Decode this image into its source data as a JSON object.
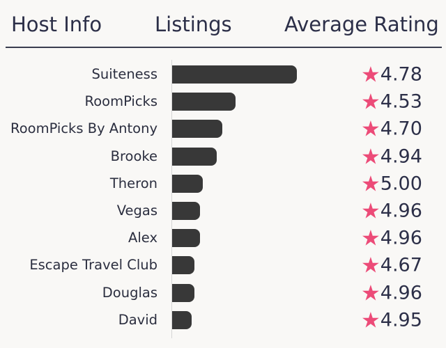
{
  "header": {
    "host_info": "Host Info",
    "listings": "Listings",
    "average_rating": "Average Rating"
  },
  "colors": {
    "bar": "#383838",
    "star": "#ec4b78",
    "text": "#2c2f48",
    "background": "#f9f8f6"
  },
  "chart_data": {
    "type": "bar",
    "orientation": "horizontal",
    "categories": [
      "Suiteness",
      "RoomPicks",
      "RoomPicks By Antony",
      "Brooke",
      "Theron",
      "Vegas",
      "Alex",
      "Escape Travel Club",
      "Douglas",
      "David"
    ],
    "series": [
      {
        "values": [
          45,
          23,
          18,
          16,
          11,
          10,
          10,
          8,
          8,
          7
        ]
      }
    ],
    "ratings": [
      "4.78",
      "4.53",
      "4.70",
      "4.94",
      "5.00",
      "4.96",
      "4.96",
      "4.67",
      "4.96",
      "4.95"
    ],
    "rating_icon": "star-icon",
    "xlim": [
      0,
      45
    ],
    "grid": false,
    "legend": "none"
  }
}
